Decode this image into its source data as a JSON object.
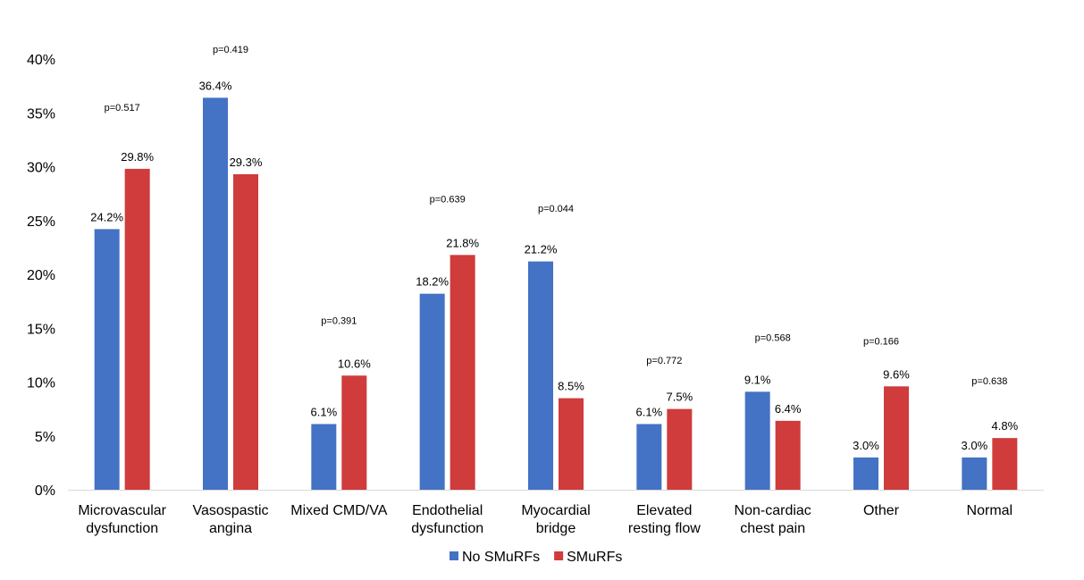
{
  "chart_data": {
    "type": "bar",
    "title": "",
    "xlabel": "",
    "ylabel": "",
    "ylim": [
      0,
      40
    ],
    "y_ticks": [
      "0%",
      "5%",
      "10%",
      "15%",
      "20%",
      "25%",
      "30%",
      "35%",
      "40%"
    ],
    "y_tick_values": [
      0,
      5,
      10,
      15,
      20,
      25,
      30,
      35,
      40
    ],
    "categories": [
      [
        "Microvascular",
        "dysfunction"
      ],
      [
        "Vasospastic",
        "angina"
      ],
      [
        "Mixed CMD/VA"
      ],
      [
        "Endothelial",
        "dysfunction"
      ],
      [
        "Myocardial",
        "bridge"
      ],
      [
        "Elevated",
        "resting flow"
      ],
      [
        "Non-cardiac",
        "chest pain"
      ],
      [
        "Other"
      ],
      [
        "Normal"
      ]
    ],
    "series": [
      {
        "name": "No SMuRFs",
        "color": "#4472c4",
        "values": [
          24.2,
          36.4,
          6.1,
          18.2,
          21.2,
          6.1,
          9.1,
          3.0,
          3.0
        ],
        "labels": [
          "24.2%",
          "36.4%",
          "6.1%",
          "18.2%",
          "21.2%",
          "6.1%",
          "9.1%",
          "3.0%",
          "3.0%"
        ]
      },
      {
        "name": "SMuRFs",
        "color": "#d03b3b",
        "values": [
          29.8,
          29.3,
          10.6,
          21.8,
          8.5,
          7.5,
          6.4,
          9.6,
          4.8
        ],
        "labels": [
          "29.8%",
          "29.3%",
          "10.6%",
          "21.8%",
          "8.5%",
          "7.5%",
          "6.4%",
          "9.6%",
          "4.8%"
        ]
      }
    ],
    "p_values": [
      "p=0.517",
      "p=0.419",
      "p=0.391",
      "p=0.639",
      "p=0.044",
      "p=0.772",
      "p=0.568",
      "p=0.166",
      "p=0.638"
    ],
    "p_value_levels": [
      35.2,
      40.6,
      15.4,
      26.7,
      25.8,
      11.7,
      13.8,
      13.5,
      9.8
    ],
    "p_value_colors": [
      "#000000",
      "#000000",
      "#000000",
      "#000000",
      "#e00000",
      "#000000",
      "#000000",
      "#000000",
      "#000000"
    ],
    "legend": {
      "position": "bottom",
      "entries": [
        "No SMuRFs",
        "SMuRFs"
      ]
    },
    "grid": false
  }
}
